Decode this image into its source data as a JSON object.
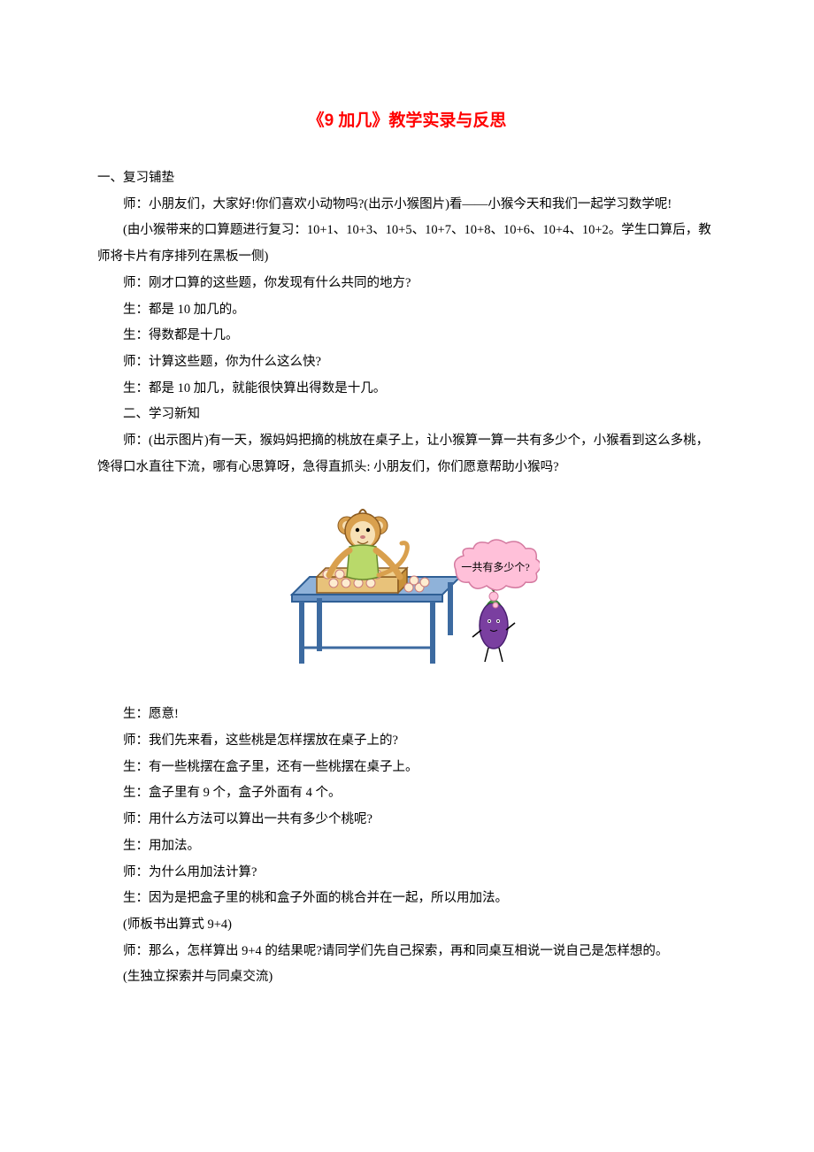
{
  "colors": {
    "title": "#ff0000",
    "body_text": "#000000",
    "background": "#ffffff",
    "monkey_fur": "#d9a04e",
    "monkey_face": "#f7e0b5",
    "monkey_shirt": "#b9d96a",
    "monkey_shirt_stroke": "#6a8a2f",
    "table_top": "#8fb2d9",
    "table_top_stroke": "#2f5f95",
    "table_leg": "#3c6aa0",
    "box_side": "#d8a24a",
    "box_stroke": "#8a5a20",
    "peach": "#fdecd0",
    "peach_stroke": "#c97a7a",
    "speech_fill": "#ffc0d9",
    "speech_stroke": "#d47aa0",
    "eggplant_body": "#7a3fa0",
    "eggplant_leaf": "#4fa04f"
  },
  "title": "《9 加几》教学实录与反思",
  "lines": [
    {
      "indent": false,
      "text": "一、复习铺垫"
    },
    {
      "indent": true,
      "text": "师：小朋友们，大家好!你们喜欢小动物吗?(出示小猴图片)看——小猴今天和我们一起学习数学呢!"
    },
    {
      "indent": true,
      "text": "(由小猴带来的口算题进行复习：10+1、10+3、10+5、10+7、10+8、10+6、10+4、10+2。学生口算后，教师将卡片有序排列在黑板一侧)"
    },
    {
      "indent": true,
      "text": "师：刚才口算的这些题，你发现有什么共同的地方?"
    },
    {
      "indent": true,
      "text": "生：都是 10 加几的。"
    },
    {
      "indent": true,
      "text": "生：得数都是十几。"
    },
    {
      "indent": true,
      "text": "师：计算这些题，你为什么这么快?"
    },
    {
      "indent": true,
      "text": "生：都是 10 加几，就能很快算出得数是十几。"
    },
    {
      "indent": true,
      "text": "二、学习新知"
    },
    {
      "indent": true,
      "text": "师：(出示图片)有一天，猴妈妈把摘的桃放在桌子上，让小猴算一算一共有多少个，小猴看到这么多桃，馋得口水直往下流，哪有心思算呀，急得直抓头: 小朋友们，你们愿意帮助小猴吗?"
    }
  ],
  "figure": {
    "speech_text": "一共有多少个?",
    "speech_font_size": 12
  },
  "lines_after": [
    {
      "indent": true,
      "text": "生：愿意!"
    },
    {
      "indent": true,
      "text": "师：我们先来看，这些桃是怎样摆放在桌子上的?"
    },
    {
      "indent": true,
      "text": "生：有一些桃摆在盒子里，还有一些桃摆在桌子上。"
    },
    {
      "indent": true,
      "text": "生：盒子里有 9 个，盒子外面有 4 个。"
    },
    {
      "indent": true,
      "text": "师：用什么方法可以算出一共有多少个桃呢?"
    },
    {
      "indent": true,
      "text": "生：用加法。"
    },
    {
      "indent": true,
      "text": "师：为什么用加法计算?"
    },
    {
      "indent": true,
      "text": "生：因为是把盒子里的桃和盒子外面的桃合并在一起，所以用加法。"
    },
    {
      "indent": true,
      "text": "(师板书出算式 9+4)"
    },
    {
      "indent": true,
      "text": "师：那么，怎样算出 9+4 的结果呢?请同学们先自己探索，再和同桌互相说一说自己是怎样想的。"
    },
    {
      "indent": true,
      "text": " (生独立探索并与同桌交流)"
    }
  ]
}
